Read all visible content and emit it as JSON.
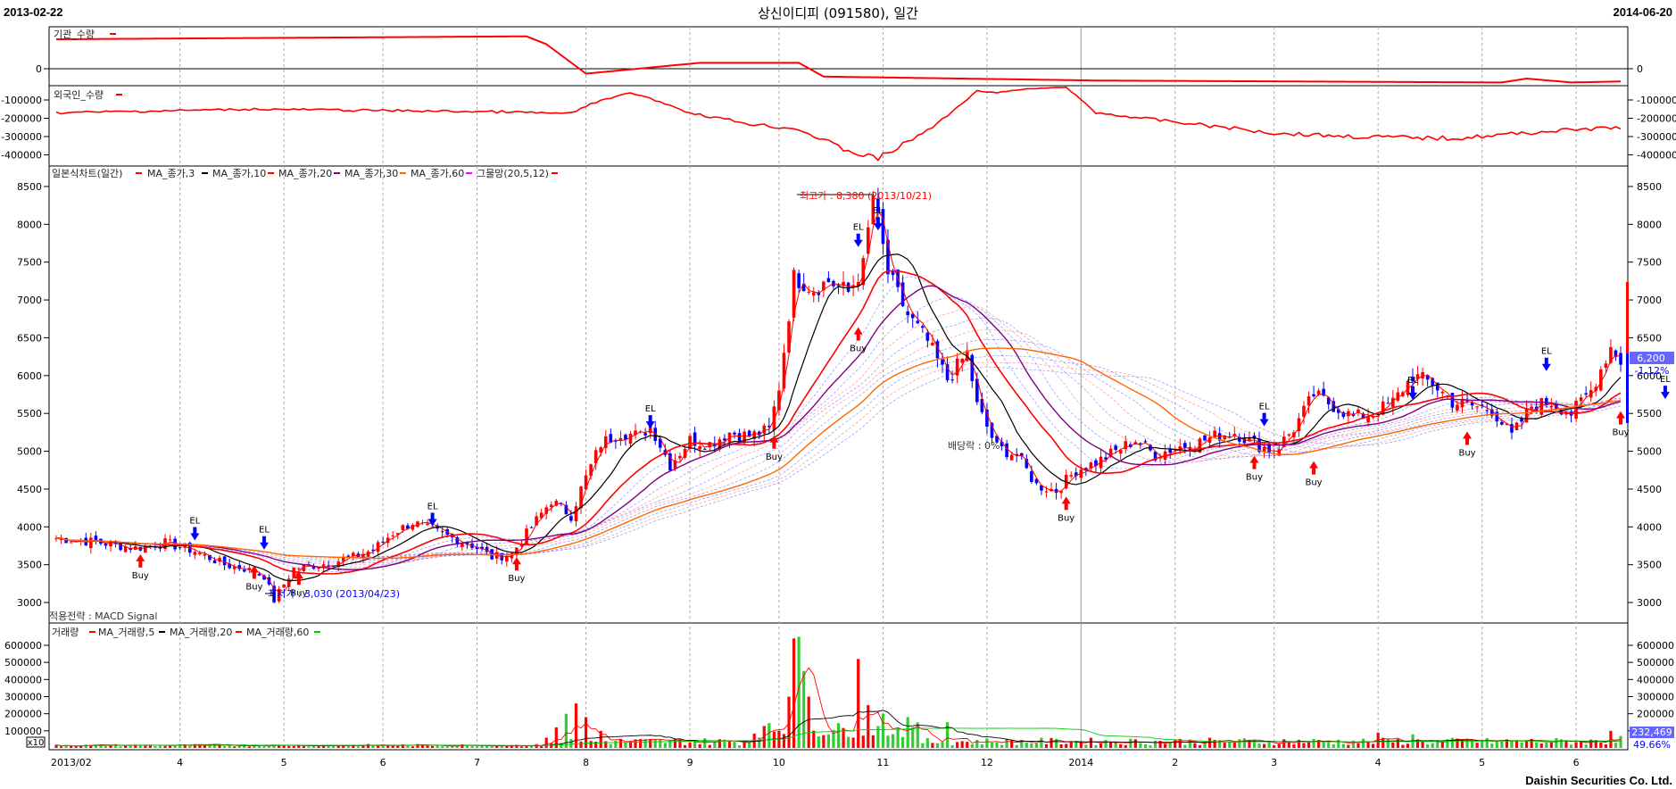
{
  "header": {
    "start_date": "2013-02-22",
    "title": "상신이디피 (091580), 일간",
    "end_date": "2014-06-20"
  },
  "footer": {
    "brand": "Daishin Securities Co. Ltd."
  },
  "colors": {
    "up": "#ff0000",
    "down": "#0000ff",
    "ma3": "#ff0000",
    "ma10": "#000000",
    "ma20": "#ff0000",
    "ma30": "#800080",
    "ma60": "#ff6600",
    "grid": "#888888"
  },
  "panels": {
    "inst": {
      "legend": "기관_수량",
      "yticks": [
        "0"
      ]
    },
    "foreign": {
      "legend": "외국인_수량",
      "yticks": [
        "-100000",
        "-200000",
        "-300000",
        "-400000"
      ]
    },
    "price": {
      "legend": [
        "일본식차트(일간)",
        "MA_종가,3",
        "MA_종가,10",
        "MA_종가,20",
        "MA_종가,30",
        "MA_종가,60",
        "그물망(20,5,12)"
      ],
      "yticks": [
        "8500",
        "8000",
        "7500",
        "7000",
        "6500",
        "6000",
        "5500",
        "5000",
        "4500",
        "4000",
        "3500",
        "3000"
      ],
      "high_label": "최고가 : 8,380 (2013/10/21)",
      "low_label": "최저가 : 3,030 (2013/04/23)",
      "dividend_label": "배당락 : 0%",
      "strategy_label": "적용전략 : MACD Signal",
      "current_price": "6,200",
      "current_change": "-1.12%",
      "signals": [
        {
          "t": "Buy",
          "d": 17,
          "p": 3640
        },
        {
          "t": "EL",
          "d": 28,
          "p": 3820
        },
        {
          "t": "EL",
          "d": 42,
          "p": 3700
        },
        {
          "t": "Buy",
          "d": 40,
          "p": 3490
        },
        {
          "t": "Buy",
          "d": 49,
          "p": 3410
        },
        {
          "t": "EL",
          "d": 76,
          "p": 4010
        },
        {
          "t": "Buy",
          "d": 93,
          "p": 3600
        },
        {
          "t": "EL",
          "d": 120,
          "p": 5300
        },
        {
          "t": "Buy",
          "d": 145,
          "p": 5210
        },
        {
          "t": "EL",
          "d": 162,
          "p": 7700
        },
        {
          "t": "EL",
          "d": 166,
          "p": 7920
        },
        {
          "t": "Buy",
          "d": 162,
          "p": 6640
        },
        {
          "t": "Buy",
          "d": 204,
          "p": 4400
        },
        {
          "t": "Buy",
          "d": 242,
          "p": 4940
        },
        {
          "t": "EL",
          "d": 244,
          "p": 5330
        },
        {
          "t": "Buy",
          "d": 254,
          "p": 4870
        },
        {
          "t": "EL",
          "d": 274,
          "p": 5680
        },
        {
          "t": "Buy",
          "d": 285,
          "p": 5260
        },
        {
          "t": "EL",
          "d": 301,
          "p": 6060
        },
        {
          "t": "Buy",
          "d": 316,
          "p": 5530
        },
        {
          "t": "EL",
          "d": 325,
          "p": 5690
        },
        {
          "t": "Buy",
          "d": 330,
          "p": 5450
        }
      ]
    },
    "volume": {
      "legend": [
        "거래량",
        "MA_거래량,5",
        "MA_거래량,20",
        "MA_거래량,60"
      ],
      "yticks": [
        "600000",
        "500000",
        "400000",
        "300000",
        "200000",
        "100000"
      ],
      "multiplier": "x10",
      "current_volume": "232,469",
      "current_pct": "49.66%"
    }
  },
  "xaxis": {
    "labels": [
      {
        "d": 0,
        "t": "2013/02"
      },
      {
        "d": 25,
        "t": "4"
      },
      {
        "d": 46,
        "t": "5"
      },
      {
        "d": 66,
        "t": "6"
      },
      {
        "d": 85,
        "t": "7"
      },
      {
        "d": 107,
        "t": "8"
      },
      {
        "d": 128,
        "t": "9"
      },
      {
        "d": 146,
        "t": "10"
      },
      {
        "d": 167,
        "t": "11"
      },
      {
        "d": 188,
        "t": "12"
      },
      {
        "d": 207,
        "t": "2014"
      },
      {
        "d": 226,
        "t": "2"
      },
      {
        "d": 246,
        "t": "3"
      },
      {
        "d": 267,
        "t": "4"
      },
      {
        "d": 288,
        "t": "5"
      },
      {
        "d": 307,
        "t": "6"
      }
    ]
  },
  "chart_data": {
    "type": "candlestick",
    "x_unit": "trading day index (2013-02-22 to 2014-06-20)",
    "price_ylim": [
      2800,
      8700
    ],
    "close_keyframes": [
      [
        0,
        3850
      ],
      [
        8,
        3800
      ],
      [
        16,
        3720
      ],
      [
        22,
        3790
      ],
      [
        28,
        3680
      ],
      [
        34,
        3500
      ],
      [
        38,
        3450
      ],
      [
        42,
        3350
      ],
      [
        44,
        3030
      ],
      [
        48,
        3450
      ],
      [
        55,
        3520
      ],
      [
        60,
        3600
      ],
      [
        64,
        3700
      ],
      [
        68,
        3920
      ],
      [
        72,
        4060
      ],
      [
        78,
        3900
      ],
      [
        84,
        3760
      ],
      [
        88,
        3600
      ],
      [
        92,
        3640
      ],
      [
        96,
        4000
      ],
      [
        100,
        4350
      ],
      [
        104,
        4150
      ],
      [
        106,
        4500
      ],
      [
        110,
        5100
      ],
      [
        114,
        5250
      ],
      [
        118,
        5200
      ],
      [
        120,
        5350
      ],
      [
        124,
        4820
      ],
      [
        128,
        5150
      ],
      [
        132,
        5100
      ],
      [
        136,
        5250
      ],
      [
        140,
        5200
      ],
      [
        144,
        5280
      ],
      [
        146,
        5850
      ],
      [
        149,
        7300
      ],
      [
        153,
        7150
      ],
      [
        156,
        7250
      ],
      [
        160,
        7100
      ],
      [
        163,
        7450
      ],
      [
        165,
        8380
      ],
      [
        168,
        7350
      ],
      [
        172,
        6800
      ],
      [
        176,
        6450
      ],
      [
        180,
        5950
      ],
      [
        184,
        6300
      ],
      [
        186,
        5600
      ],
      [
        190,
        5050
      ],
      [
        194,
        4950
      ],
      [
        198,
        4550
      ],
      [
        202,
        4480
      ],
      [
        206,
        4750
      ],
      [
        210,
        4850
      ],
      [
        214,
        5000
      ],
      [
        218,
        5150
      ],
      [
        222,
        4950
      ],
      [
        226,
        5050
      ],
      [
        230,
        5100
      ],
      [
        234,
        5200
      ],
      [
        238,
        5250
      ],
      [
        242,
        5100
      ],
      [
        246,
        5000
      ],
      [
        250,
        5300
      ],
      [
        254,
        5750
      ],
      [
        258,
        5600
      ],
      [
        262,
        5450
      ],
      [
        266,
        5500
      ],
      [
        270,
        5650
      ],
      [
        274,
        6000
      ],
      [
        278,
        5900
      ],
      [
        282,
        5650
      ],
      [
        286,
        5600
      ],
      [
        290,
        5550
      ],
      [
        294,
        5200
      ],
      [
        298,
        5600
      ],
      [
        302,
        5650
      ],
      [
        306,
        5500
      ],
      [
        310,
        5800
      ],
      [
        314,
        6380
      ],
      [
        316,
        6200
      ]
    ],
    "inst_keyframes": [
      [
        0,
        30
      ],
      [
        95,
        33
      ],
      [
        99,
        25
      ],
      [
        107,
        -5
      ],
      [
        130,
        6
      ],
      [
        150,
        6
      ],
      [
        155,
        -8
      ],
      [
        210,
        -12
      ],
      [
        292,
        -14
      ],
      [
        297,
        -10
      ],
      [
        306,
        -14
      ],
      [
        316,
        -13
      ]
    ],
    "foreign_keyframes": [
      [
        0,
        -170
      ],
      [
        40,
        -150
      ],
      [
        90,
        -165
      ],
      [
        104,
        -175
      ],
      [
        108,
        -120
      ],
      [
        116,
        -60
      ],
      [
        122,
        -110
      ],
      [
        128,
        -170
      ],
      [
        140,
        -230
      ],
      [
        150,
        -260
      ],
      [
        160,
        -380
      ],
      [
        166,
        -420
      ],
      [
        172,
        -330
      ],
      [
        178,
        -230
      ],
      [
        186,
        -50
      ],
      [
        190,
        -60
      ],
      [
        196,
        -40
      ],
      [
        204,
        -30
      ],
      [
        210,
        -170
      ],
      [
        226,
        -220
      ],
      [
        246,
        -280
      ],
      [
        262,
        -300
      ],
      [
        282,
        -310
      ],
      [
        302,
        -270
      ],
      [
        316,
        -250
      ]
    ],
    "volume_spikes": [
      [
        99,
        60000
      ],
      [
        101,
        120000
      ],
      [
        103,
        200000
      ],
      [
        105,
        260000
      ],
      [
        107,
        180000
      ],
      [
        110,
        100000
      ],
      [
        146,
        100000
      ],
      [
        148,
        300000
      ],
      [
        149,
        640000
      ],
      [
        150,
        650000
      ],
      [
        151,
        450000
      ],
      [
        152,
        300000
      ],
      [
        162,
        520000
      ],
      [
        164,
        250000
      ],
      [
        167,
        200000
      ],
      [
        172,
        180000
      ],
      [
        180,
        150000
      ],
      [
        267,
        90000
      ],
      [
        274,
        80000
      ],
      [
        314,
        100000
      ],
      [
        316,
        70000
      ]
    ]
  }
}
